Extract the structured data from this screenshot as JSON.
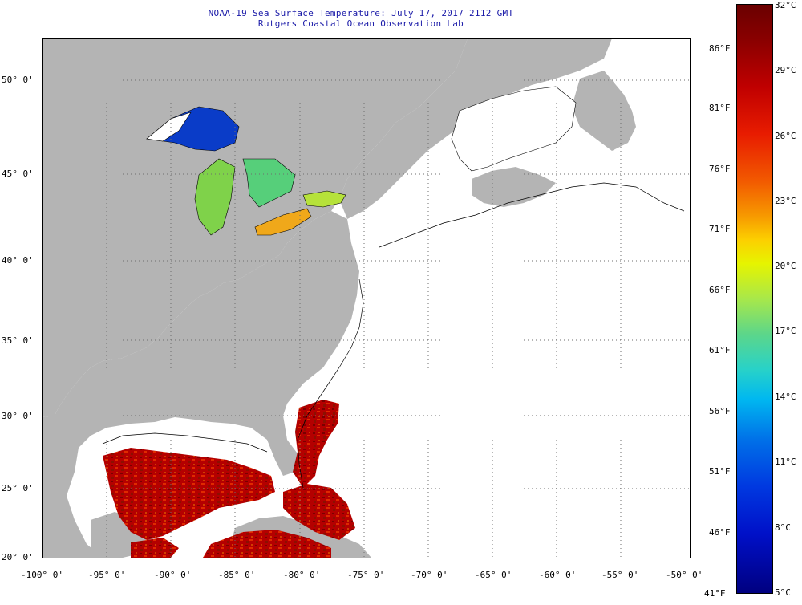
{
  "title": {
    "line1": "NOAA-19 Sea Surface Temperature:  July 17, 2017 2112 GMT",
    "line2": "Rutgers Coastal Ocean Observation Lab"
  },
  "map": {
    "lat_labels": [
      "50° 0'",
      "45° 0'",
      "40° 0'",
      "35° 0'",
      "30° 0'",
      "25° 0'",
      "20° 0'"
    ],
    "lon_labels": [
      "-100° 0'",
      "-95° 0'",
      "-90° 0'",
      "-85° 0'",
      "-80° 0'",
      "-75° 0'",
      "-70° 0'",
      "-65° 0'",
      "-60° 0'",
      "-55° 0'",
      "-50° 0'"
    ],
    "colors": {
      "land": "#b4b4b4",
      "ocean_nodata": "#ffffff",
      "grid": "#6e6e6e"
    }
  },
  "colorbar": {
    "celsius_labels": [
      "32°C",
      "29°C",
      "26°C",
      "23°C",
      "20°C",
      "17°C",
      "14°C",
      "11°C",
      "8°C",
      "5°C"
    ],
    "fahrenheit_labels": [
      "86°F",
      "81°F",
      "76°F",
      "71°F",
      "66°F",
      "61°F",
      "56°F",
      "51°F",
      "46°F",
      "41°F"
    ]
  }
}
